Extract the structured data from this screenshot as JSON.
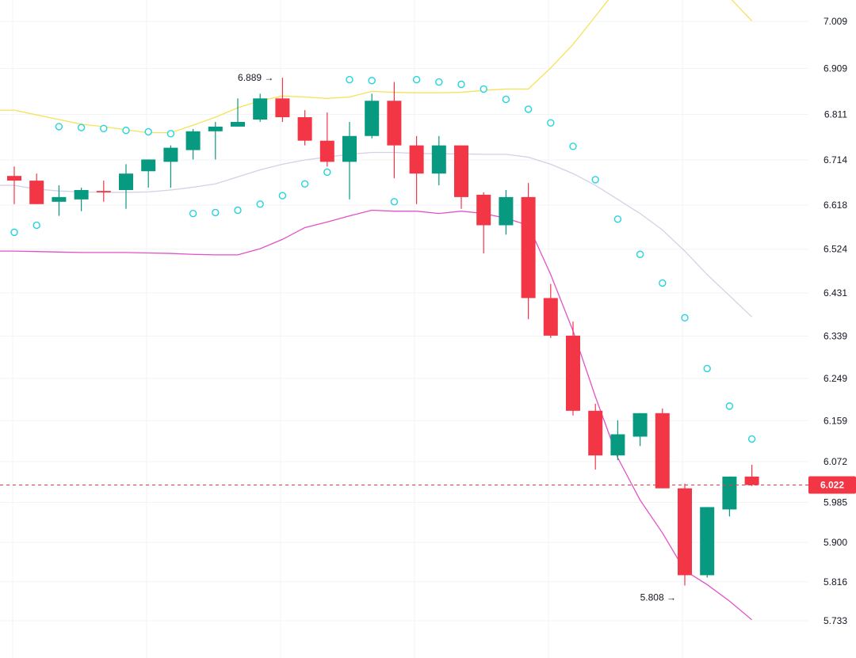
{
  "colors": {
    "up": "#089981",
    "down": "#f23645",
    "grid": "#f2f3f5",
    "upper_band": "#f4e35a",
    "middle_band": "#d7cfe6",
    "lower_band": "#e251c8",
    "sar": "#22d3e0",
    "last_price": "#f23645",
    "text": "#131722"
  },
  "chart_data": {
    "type": "candlestick",
    "grid": true,
    "ylim": [
      5.69,
      7.06
    ],
    "y_axis_position": "right",
    "y_ticks": [
      "7.009",
      "6.909",
      "6.811",
      "6.714",
      "6.618",
      "6.524",
      "6.431",
      "6.339",
      "6.249",
      "6.159",
      "6.072",
      "5.985",
      "5.900",
      "5.816",
      "5.733"
    ],
    "candles": [
      {
        "o": 6.68,
        "h": 6.7,
        "l": 6.62,
        "c": 6.67
      },
      {
        "o": 6.67,
        "h": 6.685,
        "l": 6.62,
        "c": 6.62
      },
      {
        "o": 6.625,
        "h": 6.66,
        "l": 6.595,
        "c": 6.635
      },
      {
        "o": 6.63,
        "h": 6.655,
        "l": 6.605,
        "c": 6.65
      },
      {
        "o": 6.648,
        "h": 6.67,
        "l": 6.625,
        "c": 6.645
      },
      {
        "o": 6.65,
        "h": 6.705,
        "l": 6.61,
        "c": 6.685
      },
      {
        "o": 6.69,
        "h": 6.715,
        "l": 6.655,
        "c": 6.715
      },
      {
        "o": 6.71,
        "h": 6.745,
        "l": 6.655,
        "c": 6.74
      },
      {
        "o": 6.735,
        "h": 6.78,
        "l": 6.715,
        "c": 6.775
      },
      {
        "o": 6.775,
        "h": 6.795,
        "l": 6.715,
        "c": 6.785
      },
      {
        "o": 6.785,
        "h": 6.845,
        "l": 6.785,
        "c": 6.795
      },
      {
        "o": 6.8,
        "h": 6.855,
        "l": 6.795,
        "c": 6.845
      },
      {
        "o": 6.845,
        "h": 6.889,
        "l": 6.795,
        "c": 6.805
      },
      {
        "o": 6.805,
        "h": 6.82,
        "l": 6.745,
        "c": 6.755
      },
      {
        "o": 6.755,
        "h": 6.815,
        "l": 6.7,
        "c": 6.71
      },
      {
        "o": 6.71,
        "h": 6.795,
        "l": 6.63,
        "c": 6.765
      },
      {
        "o": 6.765,
        "h": 6.855,
        "l": 6.76,
        "c": 6.84
      },
      {
        "o": 6.84,
        "h": 6.88,
        "l": 6.675,
        "c": 6.745
      },
      {
        "o": 6.745,
        "h": 6.765,
        "l": 6.62,
        "c": 6.685
      },
      {
        "o": 6.685,
        "h": 6.765,
        "l": 6.66,
        "c": 6.745
      },
      {
        "o": 6.745,
        "h": 6.745,
        "l": 6.61,
        "c": 6.635
      },
      {
        "o": 6.64,
        "h": 6.645,
        "l": 6.515,
        "c": 6.575
      },
      {
        "o": 6.575,
        "h": 6.65,
        "l": 6.555,
        "c": 6.635
      },
      {
        "o": 6.635,
        "h": 6.665,
        "l": 6.375,
        "c": 6.42
      },
      {
        "o": 6.42,
        "h": 6.45,
        "l": 6.335,
        "c": 6.34
      },
      {
        "o": 6.34,
        "h": 6.37,
        "l": 6.17,
        "c": 6.18
      },
      {
        "o": 6.18,
        "h": 6.195,
        "l": 6.055,
        "c": 6.085
      },
      {
        "o": 6.085,
        "h": 6.16,
        "l": 6.075,
        "c": 6.13
      },
      {
        "o": 6.125,
        "h": 6.175,
        "l": 6.105,
        "c": 6.175
      },
      {
        "o": 6.175,
        "h": 6.185,
        "l": 6.015,
        "c": 6.015
      },
      {
        "o": 6.015,
        "h": 6.025,
        "l": 5.808,
        "c": 5.83
      },
      {
        "o": 5.83,
        "h": 5.975,
        "l": 5.825,
        "c": 5.975
      },
      {
        "o": 5.97,
        "h": 6.04,
        "l": 5.955,
        "c": 6.04
      },
      {
        "o": 6.04,
        "h": 6.065,
        "l": 6.02,
        "c": 6.022
      }
    ],
    "upper_band": [
      6.82,
      6.81,
      6.8,
      6.79,
      6.785,
      6.778,
      6.772,
      6.772,
      6.788,
      6.805,
      6.825,
      6.84,
      6.85,
      6.848,
      6.845,
      6.848,
      6.86,
      6.858,
      6.857,
      6.857,
      6.858,
      6.862,
      6.865,
      6.865,
      6.91,
      6.96,
      7.02,
      7.08,
      7.13,
      7.15,
      7.14,
      7.11,
      7.06,
      7.01
    ],
    "middle_band": [
      6.66,
      6.652,
      6.648,
      6.646,
      6.645,
      6.645,
      6.646,
      6.65,
      6.656,
      6.663,
      6.678,
      6.693,
      6.705,
      6.714,
      6.72,
      6.726,
      6.73,
      6.73,
      6.728,
      6.727,
      6.727,
      6.726,
      6.726,
      6.72,
      6.705,
      6.685,
      6.66,
      6.63,
      6.6,
      6.565,
      6.52,
      6.47,
      6.425,
      6.38
    ],
    "lower_band": [
      6.52,
      6.519,
      6.518,
      6.517,
      6.517,
      6.517,
      6.516,
      6.515,
      6.513,
      6.512,
      6.512,
      6.525,
      6.545,
      6.57,
      6.582,
      6.595,
      6.607,
      6.605,
      6.605,
      6.6,
      6.605,
      6.6,
      6.59,
      6.575,
      6.47,
      6.35,
      6.21,
      6.08,
      5.99,
      5.92,
      5.84,
      5.81,
      5.775,
      5.735
    ],
    "sar": [
      6.56,
      6.575,
      null,
      null,
      null,
      null,
      null,
      null,
      null,
      null,
      null,
      null,
      null,
      null,
      null,
      null,
      null,
      null,
      null,
      null,
      null,
      null,
      null,
      null,
      null,
      null,
      null,
      null,
      null,
      null,
      null,
      null,
      null,
      null
    ],
    "sar_points": [
      {
        "i": 0,
        "v": 6.56
      },
      {
        "i": 1,
        "v": 6.575
      },
      {
        "i": 2,
        "v": 6.785
      },
      {
        "i": 3,
        "v": 6.783
      },
      {
        "i": 4,
        "v": 6.781
      },
      {
        "i": 5,
        "v": 6.777
      },
      {
        "i": 6,
        "v": 6.774
      },
      {
        "i": 7,
        "v": 6.77
      },
      {
        "i": 8,
        "v": 6.6
      },
      {
        "i": 9,
        "v": 6.602
      },
      {
        "i": 10,
        "v": 6.607
      },
      {
        "i": 11,
        "v": 6.62
      },
      {
        "i": 12,
        "v": 6.638
      },
      {
        "i": 13,
        "v": 6.663
      },
      {
        "i": 14,
        "v": 6.688
      },
      {
        "i": 15,
        "v": 6.885
      },
      {
        "i": 16,
        "v": 6.883
      },
      {
        "i": 17,
        "v": 6.625
      },
      {
        "i": 18,
        "v": 6.885
      },
      {
        "i": 19,
        "v": 6.88
      },
      {
        "i": 20,
        "v": 6.875
      },
      {
        "i": 21,
        "v": 6.865
      },
      {
        "i": 22,
        "v": 6.843
      },
      {
        "i": 23,
        "v": 6.822
      },
      {
        "i": 24,
        "v": 6.793
      },
      {
        "i": 25,
        "v": 6.743
      },
      {
        "i": 26,
        "v": 6.672
      },
      {
        "i": 27,
        "v": 6.588
      },
      {
        "i": 28,
        "v": 6.513
      },
      {
        "i": 29,
        "v": 6.452
      },
      {
        "i": 30,
        "v": 6.378
      },
      {
        "i": 31,
        "v": 6.27
      },
      {
        "i": 32,
        "v": 6.19
      },
      {
        "i": 33,
        "v": 6.12
      }
    ],
    "annotations": [
      {
        "text": "6.889 →",
        "index": 12,
        "value": 6.889,
        "position": "above-left"
      },
      {
        "text": "5.808 →",
        "index": 30,
        "value": 5.808,
        "position": "below-left"
      }
    ],
    "last_price": {
      "value": 6.022,
      "label": "6.022"
    }
  }
}
